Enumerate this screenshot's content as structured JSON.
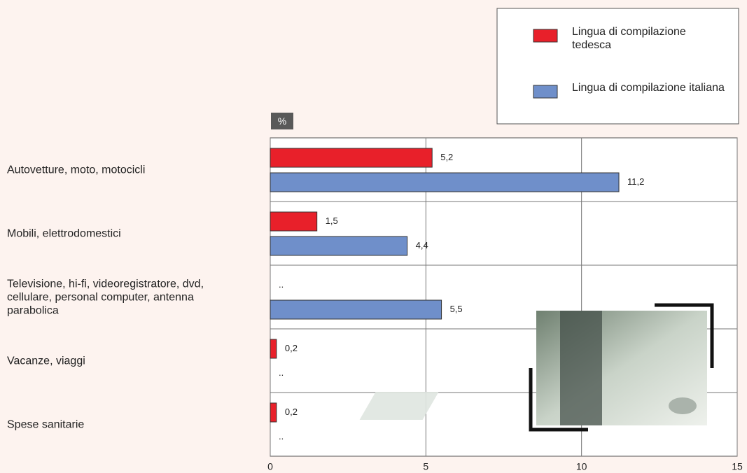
{
  "chart_data": {
    "type": "bar",
    "orientation": "horizontal",
    "unit": "%",
    "categories": [
      "Autovetture, moto, motocicli",
      "Mobili, elettrodomestici",
      "Televisione, hi-fi, videoregistratore, dvd, cellulare, personal computer, antenna parabolica",
      "Vacanze, viaggi",
      "Spese sanitarie"
    ],
    "series": [
      {
        "name": "Lingua di compilazione tedesca",
        "color": "#e8202a",
        "values": [
          5.2,
          1.5,
          null,
          0.2,
          0.2
        ],
        "value_labels": [
          "5,2",
          "1,5",
          "..",
          "0,2",
          "0,2"
        ]
      },
      {
        "name": "Lingua di compilazione italiana",
        "color": "#6f8fca",
        "values": [
          11.2,
          4.4,
          5.5,
          null,
          null
        ],
        "value_labels": [
          "11,2",
          "4,4",
          "5,5",
          "..",
          ".."
        ]
      }
    ],
    "xlim": [
      0,
      15
    ],
    "xticks": [
      0,
      5,
      10,
      15
    ],
    "grid": true
  }
}
